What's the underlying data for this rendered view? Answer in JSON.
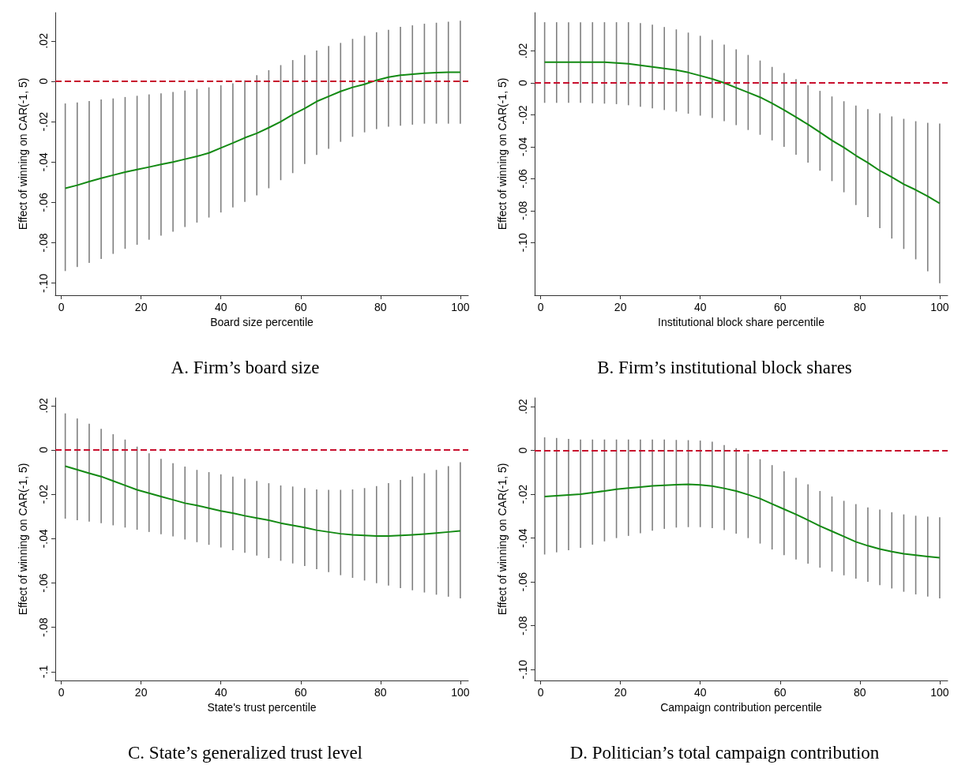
{
  "chart_data": [
    {
      "type": "line",
      "title": "A. Firm’s board size",
      "xlabel": "Board size percentile",
      "ylabel": "Effect of winning on CAR(-1, 5)",
      "grid": false,
      "marker": "none",
      "line_style": "solid",
      "xlim": [
        -1.5,
        102
      ],
      "xticks": [
        0,
        20,
        40,
        60,
        80,
        100
      ],
      "ylim": [
        -0.106,
        0.034
      ],
      "yticks": [
        {
          "value": -0.1,
          "label": "-.10"
        },
        {
          "value": -0.08,
          "label": "-.08"
        },
        {
          "value": -0.06,
          "label": "-.06"
        },
        {
          "value": -0.04,
          "label": "-.04"
        },
        {
          "value": -0.02,
          "label": "-.02"
        },
        {
          "value": 0,
          "label": "0"
        },
        {
          "value": 0.02,
          "label": ".02"
        }
      ],
      "ref_lines": [
        {
          "axis": "y",
          "value": 0,
          "color": "#c8102e",
          "line_style": "dashed"
        }
      ],
      "x": [
        1,
        4,
        7,
        10,
        13,
        16,
        19,
        22,
        25,
        28,
        31,
        34,
        37,
        40,
        43,
        46,
        49,
        52,
        55,
        58,
        61,
        64,
        67,
        70,
        73,
        76,
        79,
        82,
        85,
        88,
        91,
        94,
        97,
        100
      ],
      "series": [
        {
          "color": "#138a13",
          "values": [
            -0.053,
            -0.0515,
            -0.0497,
            -0.048,
            -0.0465,
            -0.045,
            -0.0437,
            -0.0425,
            -0.0412,
            -0.04,
            -0.0386,
            -0.0372,
            -0.0355,
            -0.033,
            -0.0306,
            -0.028,
            -0.0258,
            -0.023,
            -0.02,
            -0.0165,
            -0.0135,
            -0.01,
            -0.0075,
            -0.005,
            -0.003,
            -0.0015,
            0.0005,
            0.002,
            0.003,
            0.0035,
            0.004,
            0.0043,
            0.0045,
            0.0045
          ],
          "errors": [
            [
              -0.094,
              -0.011
            ],
            [
              -0.092,
              -0.0105
            ],
            [
              -0.09,
              -0.0098
            ],
            [
              -0.088,
              -0.009
            ],
            [
              -0.0855,
              -0.0085
            ],
            [
              -0.083,
              -0.0078
            ],
            [
              -0.081,
              -0.0072
            ],
            [
              -0.0785,
              -0.0065
            ],
            [
              -0.0765,
              -0.006
            ],
            [
              -0.0745,
              -0.0053
            ],
            [
              -0.0722,
              -0.0046
            ],
            [
              -0.07,
              -0.0038
            ],
            [
              -0.0675,
              -0.003
            ],
            [
              -0.065,
              -0.002
            ],
            [
              -0.0625,
              -0.001
            ],
            [
              -0.0598,
              0.0005
            ],
            [
              -0.0565,
              0.003
            ],
            [
              -0.053,
              0.0055
            ],
            [
              -0.049,
              0.008
            ],
            [
              -0.0455,
              0.0105
            ],
            [
              -0.041,
              0.013
            ],
            [
              -0.0365,
              0.0152
            ],
            [
              -0.0335,
              0.0175
            ],
            [
              -0.03,
              0.019
            ],
            [
              -0.0275,
              0.021
            ],
            [
              -0.0253,
              0.0225
            ],
            [
              -0.0237,
              0.0243
            ],
            [
              -0.0225,
              0.0255
            ],
            [
              -0.022,
              0.027
            ],
            [
              -0.0215,
              0.0277
            ],
            [
              -0.021,
              0.0285
            ],
            [
              -0.021,
              0.029
            ],
            [
              -0.021,
              0.0295
            ],
            [
              -0.021,
              0.03
            ]
          ]
        }
      ]
    },
    {
      "type": "line",
      "title": "B. Firm’s institutional block shares",
      "xlabel": "Institutional block share percentile",
      "ylabel": "Effect of winning on CAR(-1, 5)",
      "grid": false,
      "marker": "none",
      "line_style": "solid",
      "xlim": [
        -1.5,
        102
      ],
      "xticks": [
        0,
        20,
        40,
        60,
        80,
        100
      ],
      "ylim": [
        -0.133,
        0.044
      ],
      "yticks": [
        {
          "value": -0.1,
          "label": "-.10"
        },
        {
          "value": -0.08,
          "label": "-.08"
        },
        {
          "value": -0.06,
          "label": "-.06"
        },
        {
          "value": -0.04,
          "label": "-.04"
        },
        {
          "value": -0.02,
          "label": "-.02"
        },
        {
          "value": 0,
          "label": "0"
        },
        {
          "value": 0.02,
          "label": ".02"
        }
      ],
      "ref_lines": [
        {
          "axis": "y",
          "value": 0,
          "color": "#c8102e",
          "line_style": "dashed"
        }
      ],
      "x": [
        1,
        4,
        7,
        10,
        13,
        16,
        19,
        22,
        25,
        28,
        31,
        34,
        37,
        40,
        43,
        46,
        49,
        52,
        55,
        58,
        61,
        64,
        67,
        70,
        73,
        76,
        79,
        82,
        85,
        88,
        91,
        94,
        97,
        100
      ],
      "series": [
        {
          "color": "#138a13",
          "values": [
            0.013,
            0.013,
            0.013,
            0.013,
            0.013,
            0.013,
            0.0125,
            0.012,
            0.011,
            0.01,
            0.009,
            0.008,
            0.0065,
            0.0045,
            0.0025,
            0.0,
            -0.003,
            -0.006,
            -0.009,
            -0.0128,
            -0.017,
            -0.0215,
            -0.026,
            -0.031,
            -0.036,
            -0.0405,
            -0.0455,
            -0.05,
            -0.055,
            -0.059,
            -0.0635,
            -0.067,
            -0.071,
            -0.0755
          ],
          "errors": [
            [
              -0.0125,
              0.038
            ],
            [
              -0.0125,
              0.038
            ],
            [
              -0.0125,
              0.038
            ],
            [
              -0.0125,
              0.038
            ],
            [
              -0.0128,
              0.038
            ],
            [
              -0.013,
              0.038
            ],
            [
              -0.0133,
              0.038
            ],
            [
              -0.014,
              0.038
            ],
            [
              -0.015,
              0.0375
            ],
            [
              -0.016,
              0.0365
            ],
            [
              -0.017,
              0.035
            ],
            [
              -0.018,
              0.0335
            ],
            [
              -0.0193,
              0.0315
            ],
            [
              -0.0205,
              0.0295
            ],
            [
              -0.022,
              0.027
            ],
            [
              -0.024,
              0.024
            ],
            [
              -0.0265,
              0.021
            ],
            [
              -0.0295,
              0.0175
            ],
            [
              -0.0325,
              0.014
            ],
            [
              -0.036,
              0.01
            ],
            [
              -0.04,
              0.0062
            ],
            [
              -0.045,
              0.0023
            ],
            [
              -0.05,
              -0.0015
            ],
            [
              -0.055,
              -0.005
            ],
            [
              -0.0615,
              -0.0085
            ],
            [
              -0.0685,
              -0.0115
            ],
            [
              -0.0765,
              -0.0142
            ],
            [
              -0.084,
              -0.0165
            ],
            [
              -0.091,
              -0.019
            ],
            [
              -0.0975,
              -0.021
            ],
            [
              -0.104,
              -0.0225
            ],
            [
              -0.1105,
              -0.024
            ],
            [
              -0.118,
              -0.025
            ],
            [
              -0.1255,
              -0.0255
            ]
          ]
        }
      ]
    },
    {
      "type": "line",
      "title": "C. State’s generalized trust level",
      "xlabel": "State's trust percentile",
      "ylabel": "Effect of winning on CAR(-1, 5)",
      "grid": false,
      "marker": "none",
      "line_style": "solid",
      "xlim": [
        -1.5,
        102
      ],
      "xticks": [
        0,
        20,
        40,
        60,
        80,
        100
      ],
      "ylim": [
        -0.104,
        0.0235
      ],
      "yticks": [
        {
          "value": -0.1,
          "label": "-.1"
        },
        {
          "value": -0.08,
          "label": "-.08"
        },
        {
          "value": -0.06,
          "label": "-.06"
        },
        {
          "value": -0.04,
          "label": "-.04"
        },
        {
          "value": -0.02,
          "label": "-.02"
        },
        {
          "value": 0,
          "label": "0"
        },
        {
          "value": 0.02,
          "label": ".02"
        }
      ],
      "ref_lines": [
        {
          "axis": "y",
          "value": 0,
          "color": "#c8102e",
          "line_style": "dashed"
        }
      ],
      "x": [
        1,
        4,
        7,
        10,
        13,
        16,
        19,
        22,
        25,
        28,
        31,
        34,
        37,
        40,
        43,
        46,
        49,
        52,
        55,
        58,
        61,
        64,
        67,
        70,
        73,
        76,
        79,
        82,
        85,
        88,
        91,
        94,
        97,
        100
      ],
      "series": [
        {
          "color": "#138a13",
          "values": [
            -0.0073,
            -0.0089,
            -0.0105,
            -0.012,
            -0.014,
            -0.016,
            -0.018,
            -0.0195,
            -0.021,
            -0.0225,
            -0.024,
            -0.025,
            -0.0263,
            -0.0275,
            -0.0285,
            -0.0297,
            -0.0307,
            -0.0317,
            -0.033,
            -0.034,
            -0.035,
            -0.0362,
            -0.037,
            -0.0378,
            -0.0383,
            -0.0386,
            -0.0388,
            -0.0388,
            -0.0386,
            -0.0383,
            -0.0379,
            -0.0375,
            -0.037,
            -0.0365
          ],
          "errors": [
            [
              -0.031,
              0.0165
            ],
            [
              -0.0317,
              0.0142
            ],
            [
              -0.0323,
              0.0118
            ],
            [
              -0.033,
              0.0095
            ],
            [
              -0.034,
              0.0071
            ],
            [
              -0.035,
              0.0047
            ],
            [
              -0.036,
              0.0015
            ],
            [
              -0.037,
              -0.0015
            ],
            [
              -0.038,
              -0.004
            ],
            [
              -0.039,
              -0.006
            ],
            [
              -0.0404,
              -0.0075
            ],
            [
              -0.0416,
              -0.009
            ],
            [
              -0.0428,
              -0.01
            ],
            [
              -0.044,
              -0.011
            ],
            [
              -0.0452,
              -0.012
            ],
            [
              -0.0464,
              -0.013
            ],
            [
              -0.0476,
              -0.014
            ],
            [
              -0.0488,
              -0.015
            ],
            [
              -0.05,
              -0.016
            ],
            [
              -0.0512,
              -0.0165
            ],
            [
              -0.0524,
              -0.0172
            ],
            [
              -0.0538,
              -0.0178
            ],
            [
              -0.0551,
              -0.018
            ],
            [
              -0.0565,
              -0.018
            ],
            [
              -0.0577,
              -0.0178
            ],
            [
              -0.0589,
              -0.0172
            ],
            [
              -0.0601,
              -0.0163
            ],
            [
              -0.0612,
              -0.015
            ],
            [
              -0.0623,
              -0.0135
            ],
            [
              -0.0633,
              -0.012
            ],
            [
              -0.0643,
              -0.0105
            ],
            [
              -0.0653,
              -0.009
            ],
            [
              -0.0662,
              -0.0073
            ],
            [
              -0.067,
              -0.0055
            ]
          ]
        }
      ]
    },
    {
      "type": "line",
      "title": "D. Politician’s total campaign contribution",
      "xlabel": "Campaign contribution percentile",
      "ylabel": "Effect of winning on CAR(-1, 5)",
      "grid": false,
      "marker": "none",
      "line_style": "solid",
      "xlim": [
        -1.5,
        102
      ],
      "xticks": [
        0,
        20,
        40,
        60,
        80,
        100
      ],
      "ylim": [
        -0.105,
        0.024
      ],
      "yticks": [
        {
          "value": -0.1,
          "label": "-.10"
        },
        {
          "value": -0.08,
          "label": "-.08"
        },
        {
          "value": -0.06,
          "label": "-.06"
        },
        {
          "value": -0.04,
          "label": "-.04"
        },
        {
          "value": -0.02,
          "label": "-.02"
        },
        {
          "value": 0,
          "label": "0"
        },
        {
          "value": 0.02,
          "label": ".02"
        }
      ],
      "ref_lines": [
        {
          "axis": "y",
          "value": 0,
          "color": "#c8102e",
          "line_style": "dashed"
        }
      ],
      "x": [
        1,
        4,
        7,
        10,
        13,
        16,
        19,
        22,
        25,
        28,
        31,
        34,
        37,
        40,
        43,
        46,
        49,
        52,
        55,
        58,
        61,
        64,
        67,
        70,
        73,
        76,
        79,
        82,
        85,
        88,
        91,
        94,
        97,
        100
      ],
      "series": [
        {
          "color": "#138a13",
          "values": [
            -0.021,
            -0.0207,
            -0.0203,
            -0.02,
            -0.0192,
            -0.0185,
            -0.0177,
            -0.0172,
            -0.0167,
            -0.0162,
            -0.0159,
            -0.0156,
            -0.0155,
            -0.0157,
            -0.0163,
            -0.0173,
            -0.0185,
            -0.0202,
            -0.022,
            -0.0244,
            -0.0268,
            -0.0292,
            -0.0318,
            -0.0345,
            -0.0369,
            -0.0393,
            -0.0417,
            -0.0435,
            -0.045,
            -0.0462,
            -0.0472,
            -0.0478,
            -0.0484,
            -0.049
          ],
          "errors": [
            [
              -0.0475,
              0.006
            ],
            [
              -0.0465,
              0.0057
            ],
            [
              -0.0455,
              0.0053
            ],
            [
              -0.0445,
              0.005
            ],
            [
              -0.043,
              0.005
            ],
            [
              -0.0415,
              0.005
            ],
            [
              -0.04,
              0.005
            ],
            [
              -0.039,
              0.005
            ],
            [
              -0.0378,
              0.005
            ],
            [
              -0.0366,
              0.005
            ],
            [
              -0.0358,
              0.005
            ],
            [
              -0.0352,
              0.0048
            ],
            [
              -0.035,
              0.0047
            ],
            [
              -0.035,
              0.0045
            ],
            [
              -0.0355,
              0.004
            ],
            [
              -0.0364,
              0.0025
            ],
            [
              -0.038,
              0.001
            ],
            [
              -0.04,
              -0.0015
            ],
            [
              -0.0425,
              -0.004
            ],
            [
              -0.0452,
              -0.0067
            ],
            [
              -0.0478,
              -0.0095
            ],
            [
              -0.0498,
              -0.0125
            ],
            [
              -0.0517,
              -0.0155
            ],
            [
              -0.0535,
              -0.0185
            ],
            [
              -0.0553,
              -0.021
            ],
            [
              -0.057,
              -0.023
            ],
            [
              -0.0585,
              -0.0245
            ],
            [
              -0.06,
              -0.026
            ],
            [
              -0.0615,
              -0.027
            ],
            [
              -0.063,
              -0.0282
            ],
            [
              -0.0645,
              -0.0292
            ],
            [
              -0.0657,
              -0.0298
            ],
            [
              -0.0667,
              -0.0302
            ],
            [
              -0.0675,
              -0.0305
            ]
          ]
        }
      ]
    }
  ]
}
